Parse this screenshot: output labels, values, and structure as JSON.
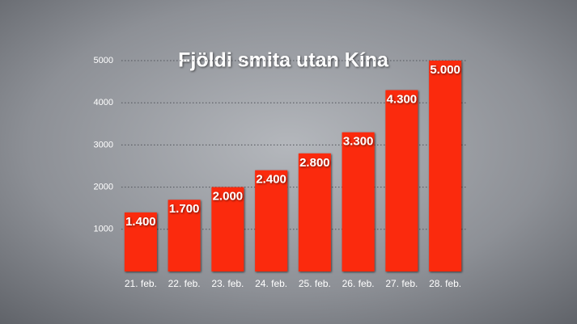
{
  "chart_data": {
    "type": "bar",
    "title": "Fjöldi smita utan Kína",
    "categories": [
      "21. feb.",
      "22. feb.",
      "23. feb.",
      "24. feb.",
      "25. feb.",
      "26. feb.",
      "27. feb.",
      "28. feb."
    ],
    "values": [
      1400,
      1700,
      2000,
      2400,
      2800,
      3300,
      4300,
      5000
    ],
    "value_labels": [
      "1.400",
      "1.700",
      "2.000",
      "2.400",
      "2.800",
      "3.300",
      "4.300",
      "5.000"
    ],
    "color": "#fb2a10",
    "ylim": [
      0,
      5000
    ],
    "yticks": [
      1000,
      2000,
      3000,
      4000,
      5000
    ],
    "grid": true
  }
}
